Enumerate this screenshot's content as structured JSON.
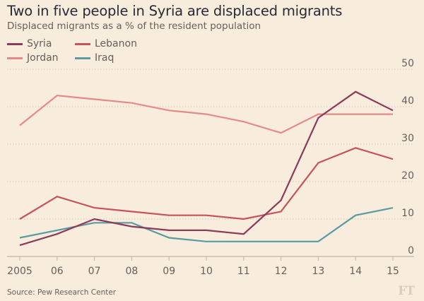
{
  "chart_data": {
    "type": "line",
    "title": "Two in five people in Syria are displaced migrants",
    "subtitle": "Displaced migrants as a % of the resident population",
    "xlabel": "",
    "ylabel": "",
    "x": [
      2005,
      2006,
      2007,
      2008,
      2009,
      2010,
      2011,
      2012,
      2013,
      2014,
      2015
    ],
    "x_tick_labels": [
      "2005",
      "06",
      "07",
      "08",
      "09",
      "10",
      "11",
      "12",
      "13",
      "14",
      "15"
    ],
    "ylim": [
      0,
      50
    ],
    "y_ticks": [
      0,
      10,
      20,
      30,
      40,
      50
    ],
    "y_tick_labels": [
      "0",
      "10",
      "20",
      "30",
      "40",
      "50"
    ],
    "y_axis_side": "right",
    "grid": true,
    "legend_position": "top-left",
    "series": [
      {
        "name": "Syria",
        "color": "#8b3a5a",
        "values": [
          3,
          6,
          10,
          8,
          7,
          7,
          6,
          15,
          37,
          44,
          39
        ]
      },
      {
        "name": "Lebanon",
        "color": "#c8525a",
        "values": [
          10,
          16,
          13,
          12,
          11,
          11,
          10,
          12,
          25,
          29,
          26
        ]
      },
      {
        "name": "Jordan",
        "color": "#e6898c",
        "values": [
          35,
          43,
          42,
          41,
          39,
          38,
          36,
          33,
          38,
          38,
          38
        ]
      },
      {
        "name": "Iraq",
        "color": "#5a9aa3",
        "values": [
          5,
          7,
          9,
          9,
          5,
          4,
          4,
          4,
          4,
          11,
          13
        ]
      }
    ],
    "source": "Source: Pew Research Center",
    "logo": "FT"
  }
}
